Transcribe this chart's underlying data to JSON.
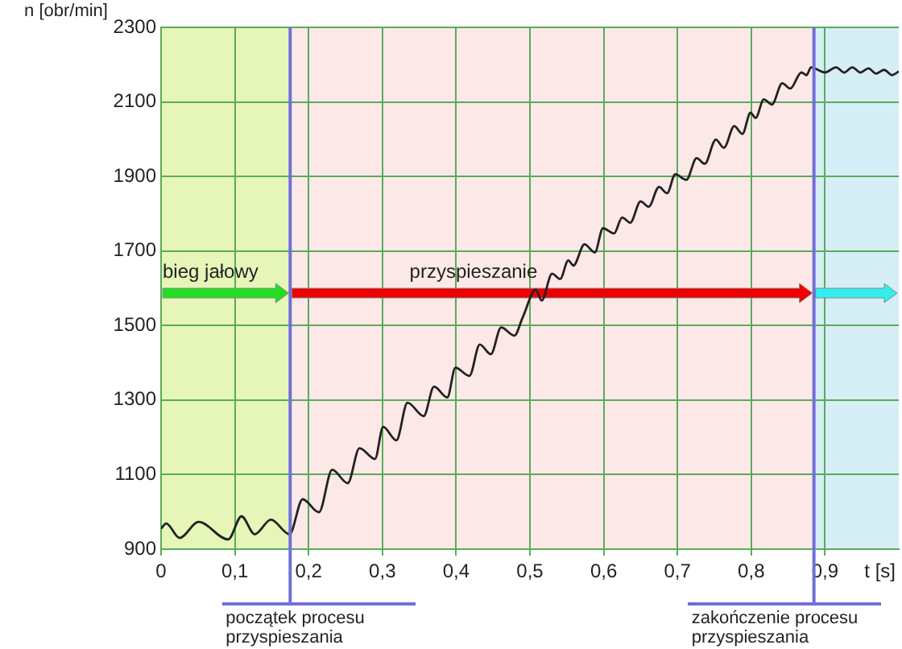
{
  "chart_data": {
    "type": "line",
    "xlabel": "t [s]",
    "ylabel": "n [obr/min]",
    "x": [
      0,
      0.007,
      0.025,
      0.051,
      0.091,
      0.109,
      0.127,
      0.149,
      0.174,
      0.192,
      0.214,
      0.232,
      0.253,
      0.269,
      0.29,
      0.301,
      0.319,
      0.334,
      0.356,
      0.37,
      0.388,
      0.399,
      0.418,
      0.432,
      0.447,
      0.461,
      0.479,
      0.49,
      0.508,
      0.516,
      0.53,
      0.541,
      0.552,
      0.559,
      0.574,
      0.588,
      0.599,
      0.614,
      0.625,
      0.636,
      0.65,
      0.661,
      0.675,
      0.686,
      0.697,
      0.712,
      0.726,
      0.737,
      0.752,
      0.763,
      0.777,
      0.788,
      0.799,
      0.806,
      0.817,
      0.828,
      0.842,
      0.853,
      0.868,
      0.875,
      0.881,
      0.9,
      0.915,
      0.926,
      0.937,
      0.948,
      0.959,
      0.969,
      0.98,
      0.991,
      1
    ],
    "series": [
      {
        "color": "#222222",
        "values": [
          955,
          969,
          930,
          973,
          926,
          988,
          940,
          979,
          940,
          1034,
          999,
          1113,
          1077,
          1171,
          1142,
          1228,
          1192,
          1293,
          1257,
          1336,
          1307,
          1387,
          1365,
          1449,
          1423,
          1495,
          1473,
          1521,
          1596,
          1567,
          1639,
          1625,
          1675,
          1661,
          1718,
          1696,
          1761,
          1747,
          1790,
          1776,
          1833,
          1819,
          1872,
          1855,
          1906,
          1891,
          1949,
          1934,
          1999,
          1977,
          2035,
          2014,
          2071,
          2057,
          2107,
          2093,
          2150,
          2136,
          2179,
          2172,
          2193,
          2179,
          2193,
          2179,
          2193,
          2179,
          2190,
          2176,
          2186,
          2172,
          2182
        ]
      }
    ],
    "xlim": [
      0,
      1
    ],
    "xticks": [
      0,
      {
        "value": 0.1,
        "label": "0,1"
      },
      {
        "value": 0.2,
        "label": "0,2"
      },
      {
        "value": 0.3,
        "label": "0,3"
      },
      {
        "value": 0.4,
        "label": "0,4"
      },
      {
        "value": 0.5,
        "label": "0,5"
      },
      {
        "value": 0.6,
        "label": "0,6"
      },
      {
        "value": 0.7,
        "label": "0,7"
      },
      {
        "value": 0.8,
        "label": "0,8"
      },
      {
        "value": 0.9,
        "label": "0,9"
      }
    ],
    "ylim": [
      900,
      2300
    ],
    "yticks": [
      900,
      1100,
      1300,
      1500,
      1700,
      1900,
      2100,
      2300
    ],
    "grid": true,
    "legend": false,
    "marker": "none",
    "line_style": "solid",
    "bands": [
      {
        "axis": "x",
        "from": 0,
        "to": 0.175,
        "label": "bieg jałowy",
        "color": "#e6f5b8"
      },
      {
        "axis": "x",
        "from": 0.175,
        "to": 0.885,
        "label": "przyspieszanie",
        "color": "#fde8e8"
      },
      {
        "axis": "x",
        "from": 0.885,
        "to": 1,
        "color": "#d6eef5"
      }
    ],
    "ref_lines": [
      {
        "axis": "x",
        "value": 0.175,
        "color": "#7070d8"
      },
      {
        "axis": "x",
        "value": 0.885,
        "color": "#7070d8"
      }
    ],
    "annotations": [
      "początek procesu przyspieszania",
      "zakończenie procesu przyspieszania"
    ]
  }
}
